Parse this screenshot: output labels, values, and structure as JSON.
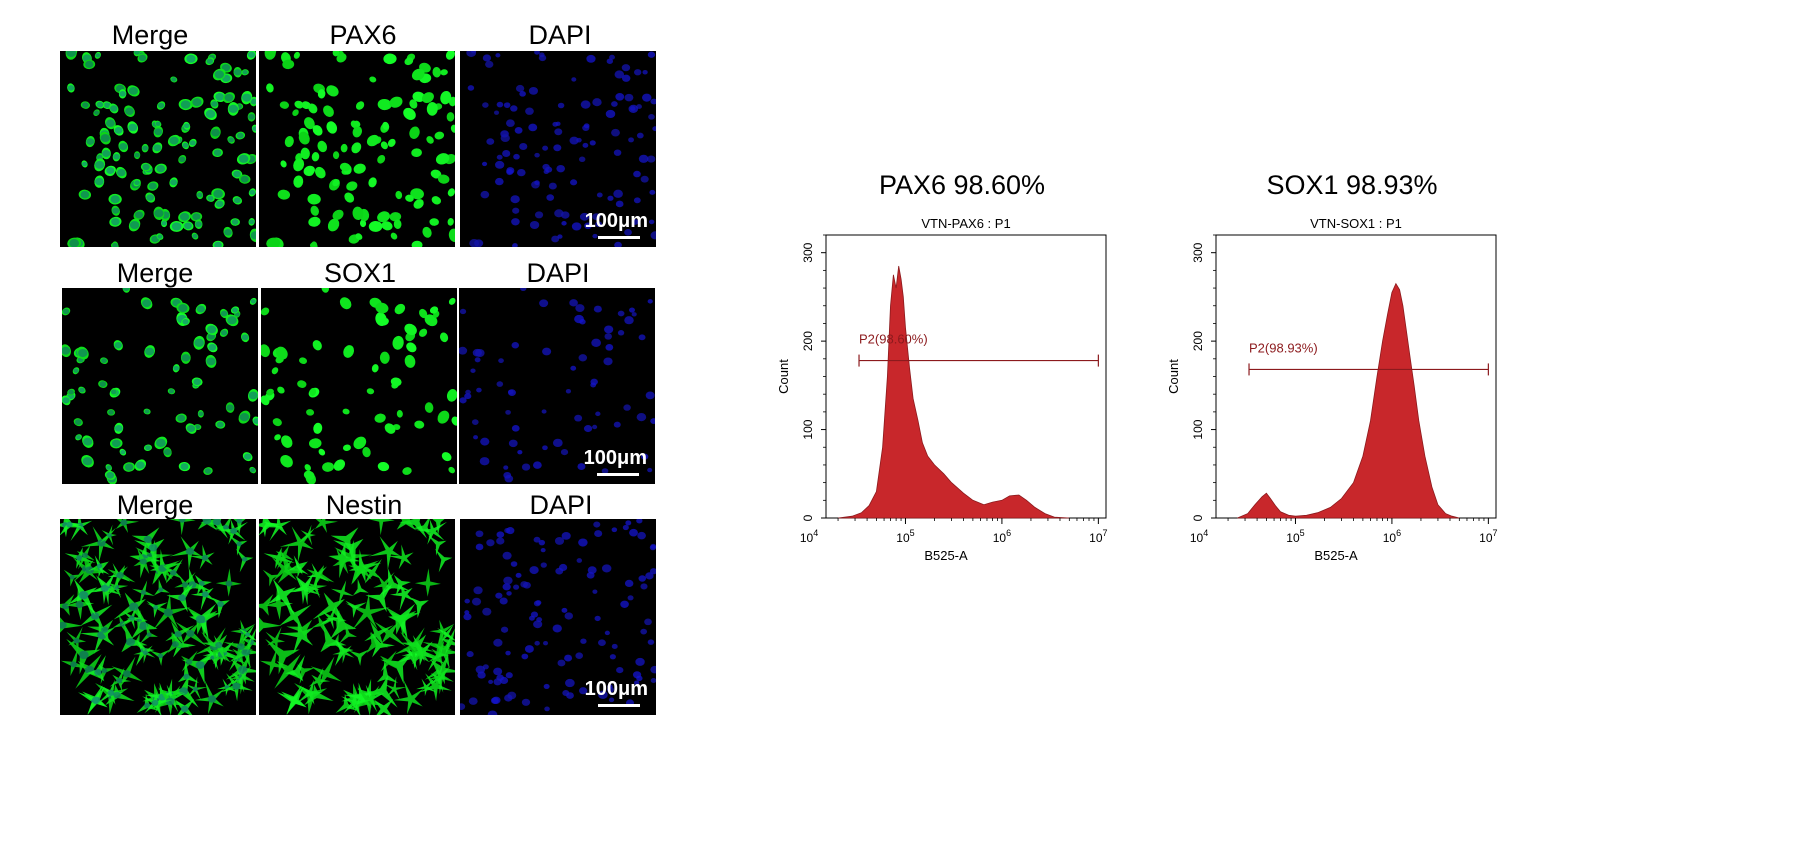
{
  "if_panel": {
    "rows": [
      {
        "labels": [
          "Merge",
          "PAX6",
          "DAPI"
        ],
        "scale_bar": "100μm"
      },
      {
        "labels": [
          "Merge",
          "SOX1",
          "DAPI"
        ],
        "scale_bar": "100μm"
      },
      {
        "labels": [
          "Merge",
          "Nestin",
          "DAPI"
        ],
        "scale_bar": "100μm"
      }
    ],
    "colors": {
      "green": "#22c82a",
      "blue": "#1a1aa0",
      "background": "#000000"
    }
  },
  "chart_data": [
    {
      "type": "area",
      "title": "PAX6 98.60%",
      "subtitle": "VTN-PAX6 : P1",
      "xlabel": "B525-A",
      "ylabel": "Count",
      "xscale": "log",
      "xlim": [
        15000,
        12000000
      ],
      "ylim": [
        0,
        320
      ],
      "xticks": [
        10000,
        100000,
        1000000,
        10000000
      ],
      "xtick_labels": [
        "10^4",
        "10^5",
        "10^6",
        "10^7"
      ],
      "yticks": [
        0,
        100,
        200,
        300
      ],
      "gate": {
        "label": "P2(98.60%)",
        "x_start": 33000,
        "x_end": 10000000,
        "y": 178
      },
      "fill_color": "#c8272b",
      "x": [
        20000,
        28000,
        35000,
        42000,
        50000,
        58000,
        65000,
        70000,
        75000,
        80000,
        85000,
        90000,
        95000,
        100000,
        110000,
        120000,
        135000,
        150000,
        170000,
        200000,
        250000,
        300000,
        400000,
        500000,
        650000,
        800000,
        1000000,
        1200000,
        1500000,
        1800000,
        2200000,
        2800000,
        3500000,
        5000000
      ],
      "y": [
        0,
        2,
        6,
        14,
        30,
        80,
        160,
        240,
        275,
        260,
        285,
        270,
        250,
        215,
        170,
        135,
        110,
        85,
        70,
        60,
        50,
        40,
        28,
        20,
        15,
        18,
        20,
        25,
        26,
        20,
        12,
        5,
        1,
        0
      ]
    },
    {
      "type": "area",
      "title": "SOX1 98.93%",
      "subtitle": "VTN-SOX1 : P1",
      "xlabel": "B525-A",
      "ylabel": "Count",
      "xscale": "log",
      "xlim": [
        15000,
        12000000
      ],
      "ylim": [
        0,
        320
      ],
      "xticks": [
        10000,
        100000,
        1000000,
        10000000
      ],
      "xtick_labels": [
        "10^4",
        "10^5",
        "10^6",
        "10^7"
      ],
      "yticks": [
        0,
        100,
        200,
        300
      ],
      "gate": {
        "label": "P2(98.93%)",
        "x_start": 33000,
        "x_end": 10000000,
        "y": 168
      },
      "fill_color": "#c8272b",
      "x": [
        25000,
        32000,
        38000,
        45000,
        50000,
        55000,
        62000,
        70000,
        85000,
        100000,
        130000,
        170000,
        230000,
        300000,
        400000,
        500000,
        600000,
        700000,
        800000,
        900000,
        1000000,
        1100000,
        1200000,
        1300000,
        1400000,
        1550000,
        1700000,
        1900000,
        2200000,
        2600000,
        3000000,
        3600000,
        4200000,
        5000000
      ],
      "y": [
        0,
        5,
        15,
        24,
        28,
        22,
        14,
        7,
        3,
        2,
        3,
        6,
        12,
        22,
        40,
        70,
        110,
        160,
        200,
        230,
        255,
        265,
        258,
        240,
        215,
        180,
        150,
        110,
        70,
        35,
        15,
        5,
        2,
        0
      ]
    }
  ]
}
